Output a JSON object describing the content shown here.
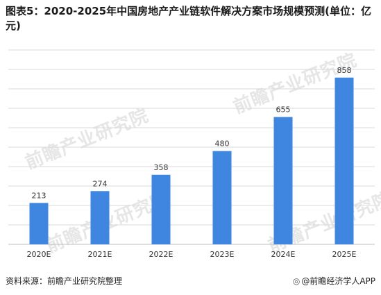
{
  "title": "图表5：2020-2025年中国房地产产业链软件解决方案市场规模预测(单位：亿元)",
  "watermark": "前瞻产业研究院",
  "footer": {
    "source": "资料来源：前瞻产业研究院整理",
    "brand_icon": "wechat-like-icon",
    "brand": "@前瞻经济学人APP"
  },
  "colors": {
    "bar": "#3f86e0",
    "grid": "#d9d9d9",
    "axis": "#bfbfbf"
  },
  "chart_data": {
    "type": "bar",
    "categories": [
      "2020E",
      "2021E",
      "2022E",
      "2023E",
      "2024E",
      "2025E"
    ],
    "values": [
      213,
      274,
      358,
      480,
      655,
      858
    ],
    "ylim": [
      0,
      1000
    ],
    "grid": true,
    "legend": "none"
  }
}
